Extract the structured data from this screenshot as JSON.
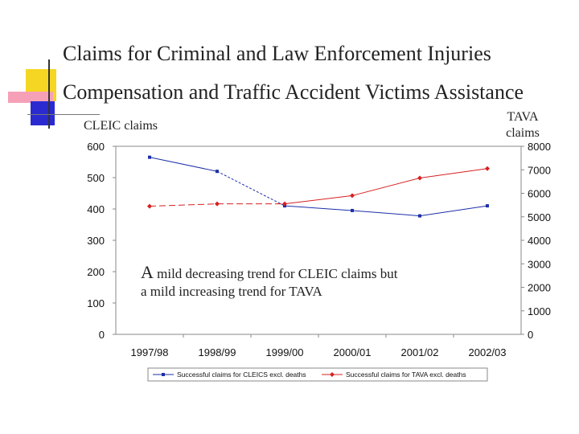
{
  "title_line1": "Claims for Criminal and Law Enforcement Injuries",
  "title_line2": "Compensation and Traffic Accident Victims Assistance",
  "left_axis_label": "CLEIC claims",
  "right_axis_label_line1": "TAVA",
  "right_axis_label_line2": "claims",
  "annotation_first_letter": "A",
  "annotation_line1_rest": " mild decreasing trend for CLEIC claims but",
  "annotation_line2": "a mild increasing trend for TAVA",
  "colors": {
    "accent_yellow": "#f5d623",
    "accent_red": "#e8202a",
    "accent_pink": "#f6a0b8",
    "accent_blue": "#2a2ad0",
    "series_blue": "#1c2fa8",
    "series_red": "#d62020"
  },
  "chart_data": {
    "type": "line",
    "categories": [
      "1997/98",
      "1998/99",
      "1999/00",
      "2000/01",
      "2001/02",
      "2002/03"
    ],
    "series": [
      {
        "name": "Successful claims for CLEICS excl. deaths",
        "axis": "left",
        "values": [
          565,
          520,
          410,
          395,
          378,
          410
        ]
      },
      {
        "name": "Successful claims for TAVA excl. deaths",
        "axis": "right",
        "values": [
          5450,
          5550,
          5550,
          5900,
          6650,
          7050
        ]
      }
    ],
    "yleft": {
      "min": 0,
      "max": 600,
      "ticks": [
        0,
        100,
        200,
        300,
        400,
        500,
        600
      ]
    },
    "yright": {
      "min": 0,
      "max": 8000,
      "ticks": [
        0,
        1000,
        2000,
        3000,
        4000,
        5000,
        6000,
        7000,
        8000
      ]
    },
    "grid": false,
    "legend_position": "bottom"
  }
}
